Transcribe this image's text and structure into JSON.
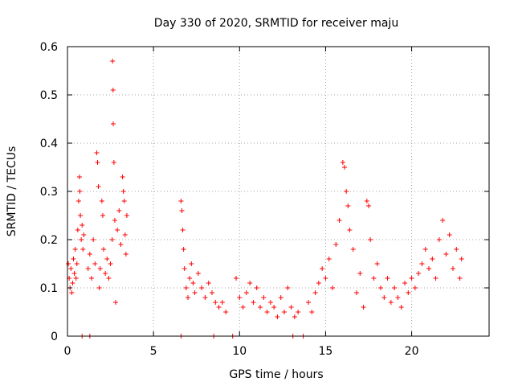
{
  "chart_data": {
    "type": "scatter",
    "title": "Day 330 of 2020, SRMTID for receiver maju",
    "xlabel": "GPS time / hours",
    "ylabel": "SRMTID / TECUs",
    "xlim": [
      0,
      24.5
    ],
    "ylim": [
      0,
      0.6
    ],
    "xticks": [
      0,
      5,
      10,
      15,
      20
    ],
    "xtick_labels": [
      "0",
      "5",
      "10",
      "15",
      "20"
    ],
    "yticks": [
      0,
      0.1,
      0.2,
      0.3,
      0.4,
      0.5,
      0.6
    ],
    "ytick_labels": [
      "0",
      "0.1",
      "0.2",
      "0.3",
      "0.4",
      "0.5",
      "0.6"
    ],
    "grid": true,
    "marker": "+",
    "marker_color": "#ff0000",
    "series": [
      {
        "name": "SRMTID",
        "points": [
          [
            0.05,
            0.15
          ],
          [
            0.1,
            0.12
          ],
          [
            0.15,
            0.1
          ],
          [
            0.2,
            0.14
          ],
          [
            0.25,
            0.09
          ],
          [
            0.3,
            0.11
          ],
          [
            0.35,
            0.16
          ],
          [
            0.4,
            0.13
          ],
          [
            0.45,
            0.18
          ],
          [
            0.5,
            0.12
          ],
          [
            0.55,
            0.15
          ],
          [
            0.6,
            0.22
          ],
          [
            0.65,
            0.28
          ],
          [
            0.7,
            0.33
          ],
          [
            0.72,
            0.3
          ],
          [
            0.75,
            0.25
          ],
          [
            0.8,
            0.2
          ],
          [
            0.85,
            0.23
          ],
          [
            0.9,
            0.18
          ],
          [
            0.95,
            0.21
          ],
          [
            1.2,
            0.14
          ],
          [
            1.3,
            0.17
          ],
          [
            1.4,
            0.12
          ],
          [
            1.5,
            0.2
          ],
          [
            1.6,
            0.15
          ],
          [
            1.7,
            0.38
          ],
          [
            1.75,
            0.36
          ],
          [
            1.8,
            0.31
          ],
          [
            1.85,
            0.1
          ],
          [
            1.9,
            0.14
          ],
          [
            2.0,
            0.28
          ],
          [
            2.05,
            0.25
          ],
          [
            2.1,
            0.18
          ],
          [
            2.2,
            0.13
          ],
          [
            2.3,
            0.16
          ],
          [
            2.4,
            0.12
          ],
          [
            2.5,
            0.15
          ],
          [
            2.6,
            0.2
          ],
          [
            2.62,
            0.57
          ],
          [
            2.65,
            0.51
          ],
          [
            2.66,
            0.44
          ],
          [
            2.7,
            0.36
          ],
          [
            2.75,
            0.24
          ],
          [
            2.8,
            0.07
          ],
          [
            2.9,
            0.22
          ],
          [
            3.0,
            0.26
          ],
          [
            3.1,
            0.19
          ],
          [
            3.2,
            0.33
          ],
          [
            3.25,
            0.3
          ],
          [
            3.3,
            0.28
          ],
          [
            3.35,
            0.21
          ],
          [
            3.4,
            0.17
          ],
          [
            3.45,
            0.25
          ],
          [
            6.6,
            0.28
          ],
          [
            6.65,
            0.26
          ],
          [
            6.7,
            0.22
          ],
          [
            6.75,
            0.18
          ],
          [
            6.8,
            0.14
          ],
          [
            6.9,
            0.1
          ],
          [
            7.0,
            0.08
          ],
          [
            7.1,
            0.12
          ],
          [
            7.2,
            0.15
          ],
          [
            7.3,
            0.11
          ],
          [
            7.4,
            0.09
          ],
          [
            7.6,
            0.13
          ],
          [
            7.8,
            0.1
          ],
          [
            8.0,
            0.08
          ],
          [
            8.2,
            0.11
          ],
          [
            8.4,
            0.09
          ],
          [
            8.6,
            0.07
          ],
          [
            8.8,
            0.06
          ],
          [
            9.0,
            0.07
          ],
          [
            9.2,
            0.05
          ],
          [
            9.8,
            0.12
          ],
          [
            10.0,
            0.08
          ],
          [
            10.2,
            0.06
          ],
          [
            10.4,
            0.09
          ],
          [
            10.6,
            0.11
          ],
          [
            10.8,
            0.07
          ],
          [
            11.0,
            0.1
          ],
          [
            11.2,
            0.06
          ],
          [
            11.4,
            0.08
          ],
          [
            11.6,
            0.05
          ],
          [
            11.8,
            0.07
          ],
          [
            12.0,
            0.06
          ],
          [
            12.2,
            0.04
          ],
          [
            12.4,
            0.08
          ],
          [
            12.6,
            0.05
          ],
          [
            12.8,
            0.1
          ],
          [
            13.0,
            0.06
          ],
          [
            13.2,
            0.04
          ],
          [
            13.4,
            0.05
          ],
          [
            14.0,
            0.07
          ],
          [
            14.2,
            0.05
          ],
          [
            14.4,
            0.09
          ],
          [
            14.6,
            0.11
          ],
          [
            14.8,
            0.14
          ],
          [
            15.0,
            0.12
          ],
          [
            15.2,
            0.16
          ],
          [
            15.4,
            0.1
          ],
          [
            15.6,
            0.19
          ],
          [
            15.8,
            0.24
          ],
          [
            16.0,
            0.36
          ],
          [
            16.1,
            0.35
          ],
          [
            16.2,
            0.3
          ],
          [
            16.3,
            0.27
          ],
          [
            16.4,
            0.22
          ],
          [
            16.6,
            0.18
          ],
          [
            16.8,
            0.09
          ],
          [
            17.0,
            0.13
          ],
          [
            17.2,
            0.06
          ],
          [
            17.4,
            0.28
          ],
          [
            17.5,
            0.27
          ],
          [
            17.6,
            0.2
          ],
          [
            17.8,
            0.12
          ],
          [
            18.0,
            0.15
          ],
          [
            18.2,
            0.1
          ],
          [
            18.4,
            0.08
          ],
          [
            18.6,
            0.12
          ],
          [
            18.8,
            0.07
          ],
          [
            19.0,
            0.1
          ],
          [
            19.2,
            0.08
          ],
          [
            19.4,
            0.06
          ],
          [
            19.6,
            0.11
          ],
          [
            19.8,
            0.09
          ],
          [
            20.0,
            0.12
          ],
          [
            20.2,
            0.1
          ],
          [
            20.4,
            0.13
          ],
          [
            20.6,
            0.15
          ],
          [
            20.8,
            0.18
          ],
          [
            21.0,
            0.14
          ],
          [
            21.2,
            0.16
          ],
          [
            21.4,
            0.12
          ],
          [
            21.6,
            0.2
          ],
          [
            21.8,
            0.24
          ],
          [
            22.0,
            0.17
          ],
          [
            22.2,
            0.21
          ],
          [
            22.4,
            0.14
          ],
          [
            22.6,
            0.18
          ],
          [
            22.8,
            0.12
          ],
          [
            22.9,
            0.16
          ],
          [
            0.85,
            0.0
          ],
          [
            1.3,
            0.0
          ],
          [
            6.6,
            0.0
          ],
          [
            8.5,
            0.0
          ],
          [
            9.6,
            0.0
          ],
          [
            13.1,
            0.0
          ],
          [
            13.7,
            0.0
          ]
        ]
      }
    ]
  }
}
